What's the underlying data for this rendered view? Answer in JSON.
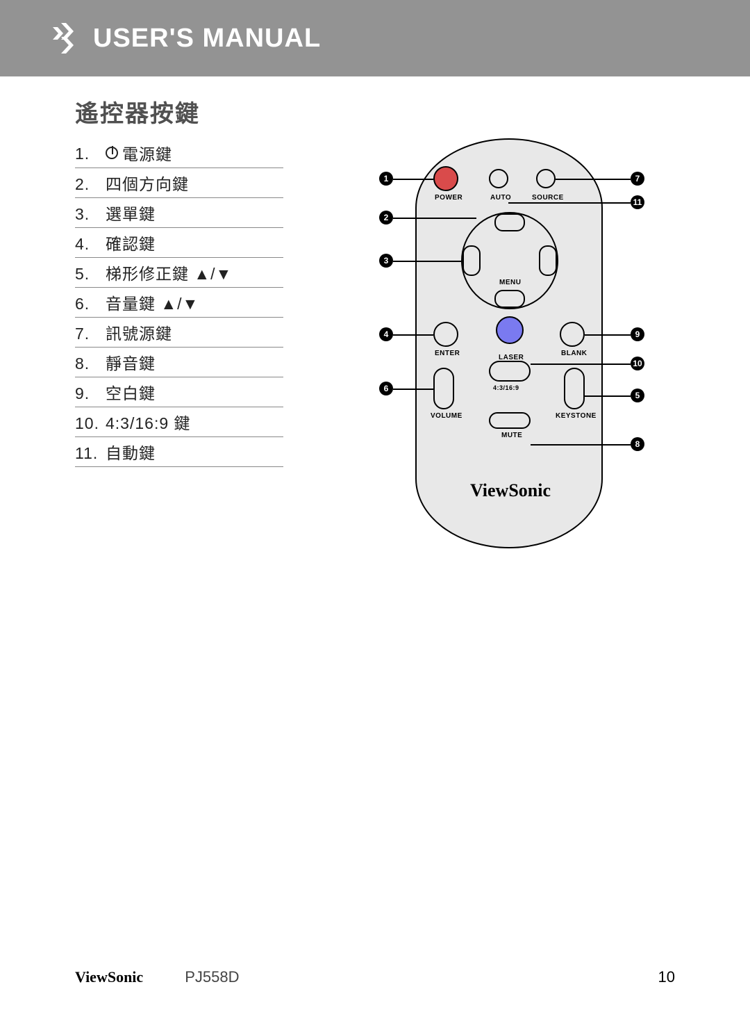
{
  "header": {
    "title": "USER'S MANUAL"
  },
  "section_title": "遙控器按鍵",
  "keys": [
    {
      "num": "1.",
      "label": "電源鍵",
      "icon": "power"
    },
    {
      "num": "2.",
      "label": "四個方向鍵"
    },
    {
      "num": "3.",
      "label": "選單鍵"
    },
    {
      "num": "4.",
      "label": "確認鍵"
    },
    {
      "num": "5.",
      "label": "梯形修正鍵 ▲/▼"
    },
    {
      "num": "6.",
      "label": "音量鍵 ▲/▼"
    },
    {
      "num": "7.",
      "label": "訊號源鍵"
    },
    {
      "num": "8.",
      "label": "靜音鍵"
    },
    {
      "num": "9.",
      "label": "空白鍵"
    },
    {
      "num": "10.",
      "label": "4:3/16:9 鍵"
    },
    {
      "num": "11.",
      "label": "自動鍵"
    }
  ],
  "remote": {
    "brand": "ViewSonic",
    "buttons": {
      "power": "POWER",
      "auto": "AUTO",
      "source": "SOURCE",
      "menu": "MENU",
      "enter": "ENTER",
      "blank": "BLANK",
      "laser": "LASER",
      "volume": "VOLUME",
      "ratio": "4:3/16:9",
      "keystone": "KEYSTONE",
      "mute": "MUTE"
    },
    "callouts": [
      "1",
      "2",
      "3",
      "4",
      "5",
      "6",
      "7",
      "8",
      "9",
      "10",
      "11"
    ],
    "colors": {
      "power_btn": "#d94b4b",
      "laser_btn": "#7a7af0",
      "body": "#e8e8e8",
      "header_bar": "#939393"
    }
  },
  "footer": {
    "brand": "ViewSonic",
    "model": "PJ558D",
    "page": "10"
  }
}
